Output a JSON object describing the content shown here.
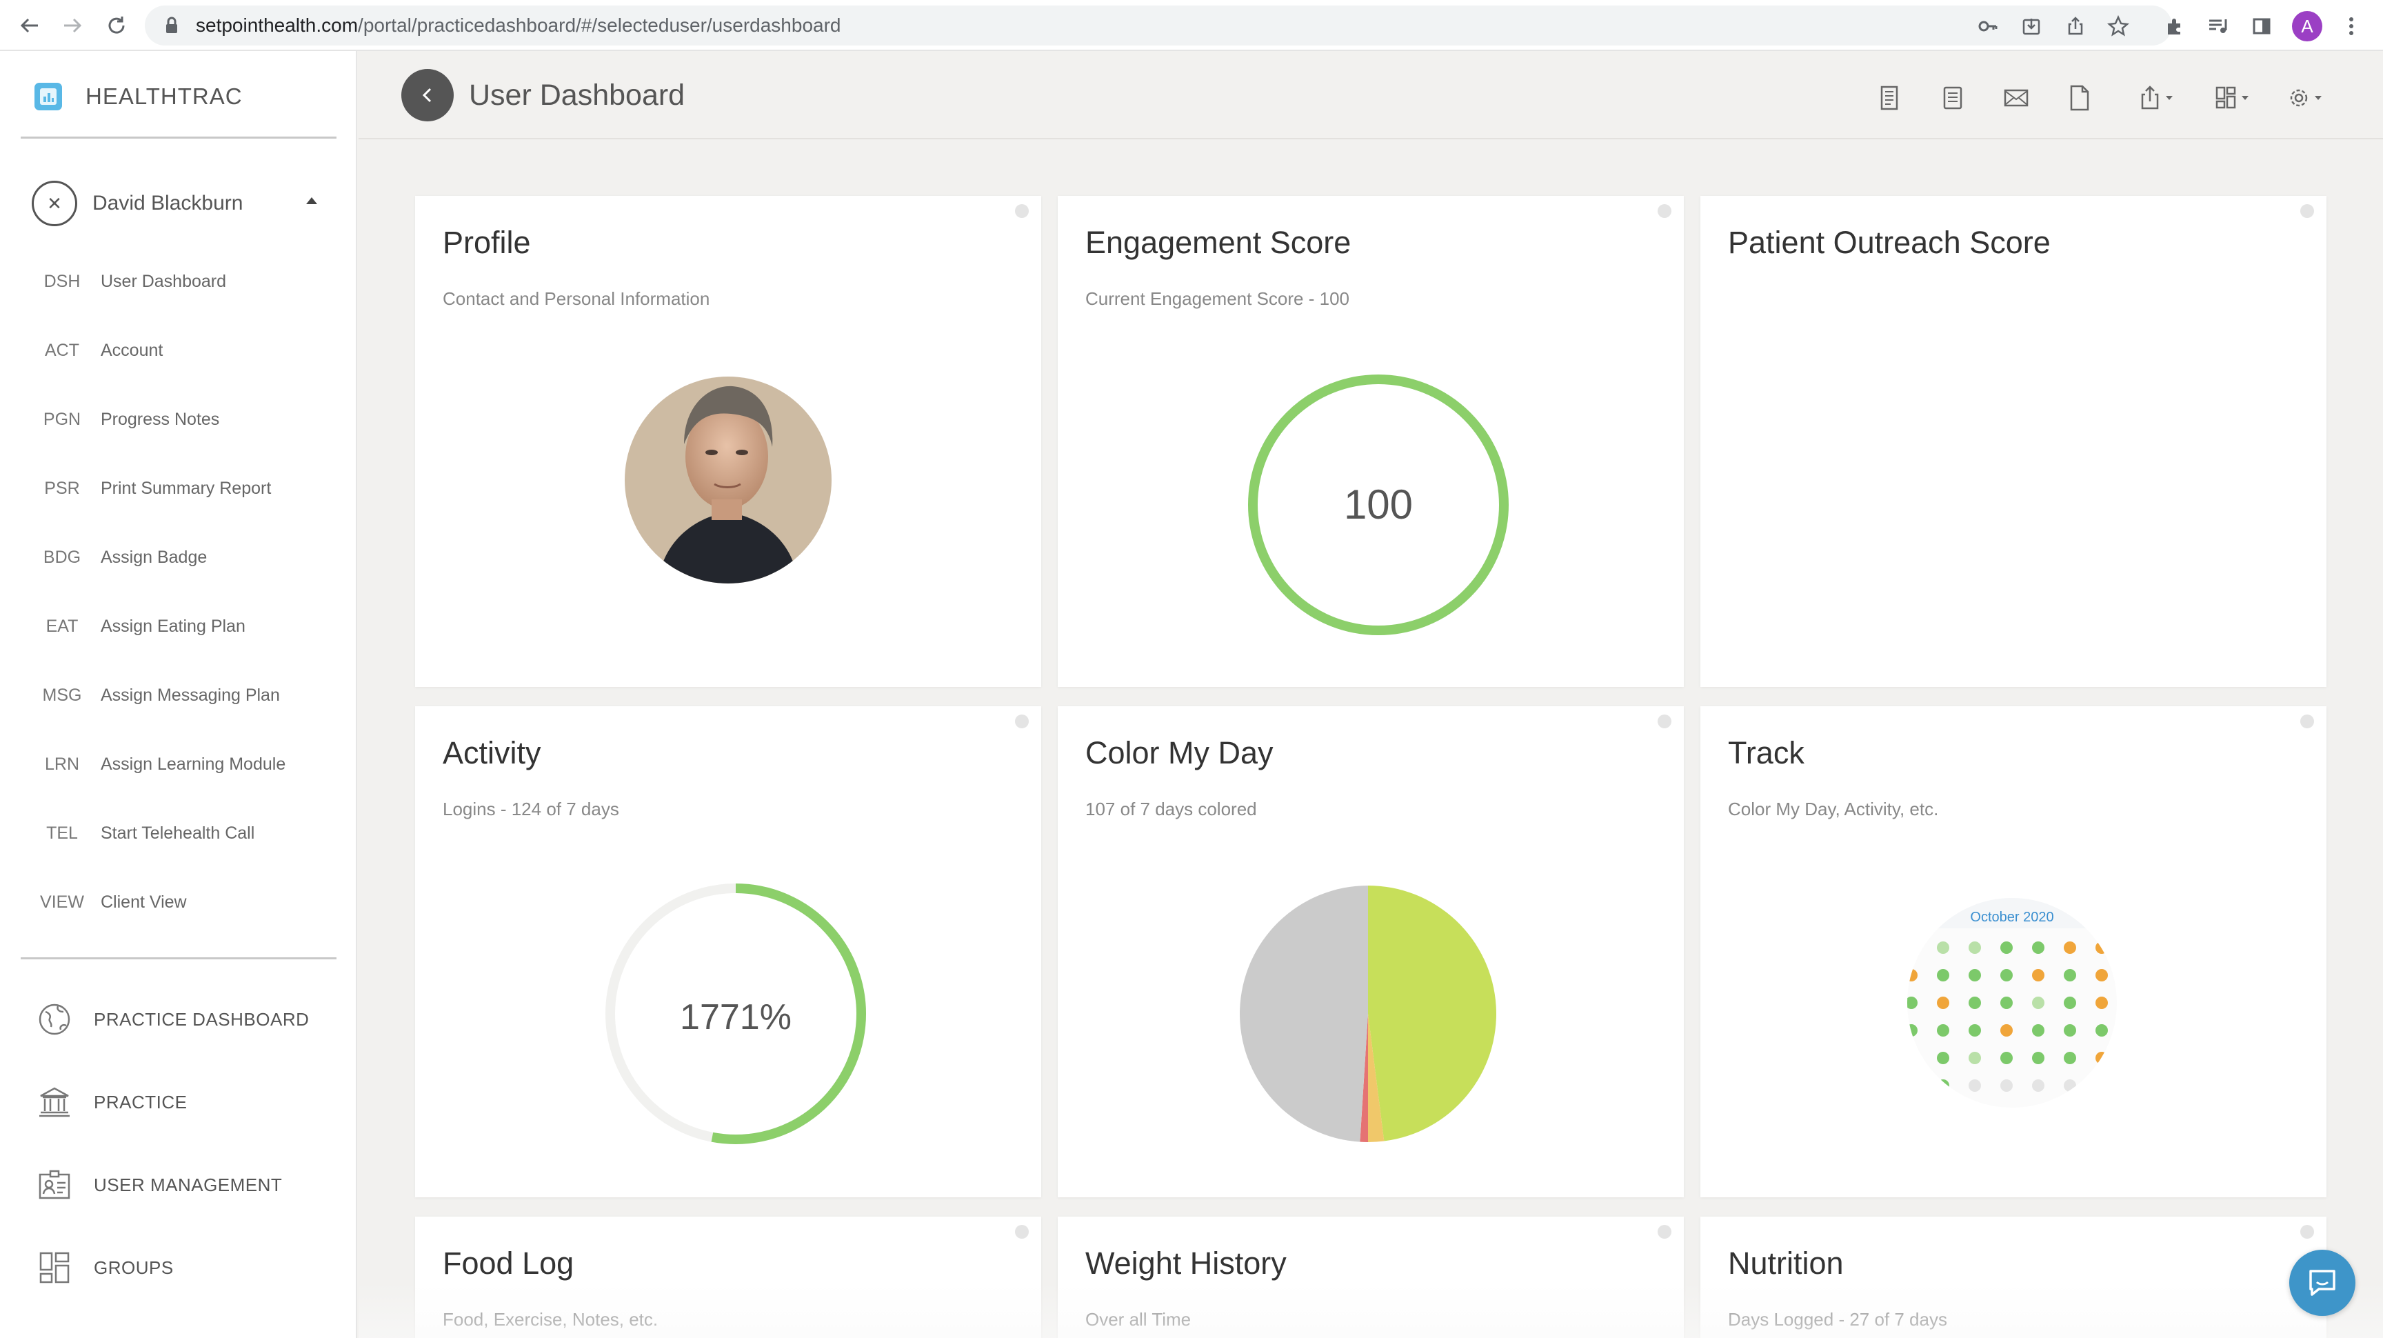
{
  "browser": {
    "url_domain": "setpointhealth.com",
    "url_path": "/portal/practicedashboard/#/selecteduser/userdashboard",
    "profile_initial": "A",
    "icons": [
      "back-arrow-icon",
      "forward-arrow-icon",
      "reload-icon",
      "lock-icon",
      "key-icon",
      "install-icon",
      "share-icon",
      "star-icon",
      "extensions-icon",
      "reading-list-icon",
      "side-panel-icon",
      "menu-icon"
    ]
  },
  "sidebar": {
    "brand_name": "HEALTHTRAC",
    "user_name": "David Blackburn",
    "menu": [
      {
        "code": "DSH",
        "label": "User Dashboard"
      },
      {
        "code": "ACT",
        "label": "Account"
      },
      {
        "code": "PGN",
        "label": "Progress Notes"
      },
      {
        "code": "PSR",
        "label": "Print Summary Report"
      },
      {
        "code": "BDG",
        "label": "Assign Badge"
      },
      {
        "code": "EAT",
        "label": "Assign Eating Plan"
      },
      {
        "code": "MSG",
        "label": "Assign Messaging Plan"
      },
      {
        "code": "LRN",
        "label": "Assign Learning Module"
      },
      {
        "code": "TEL",
        "label": "Start Telehealth Call"
      },
      {
        "code": "VIEW",
        "label": "Client View"
      }
    ],
    "nav": [
      {
        "label": "PRACTICE DASHBOARD",
        "icon": "globe-icon"
      },
      {
        "label": "PRACTICE",
        "icon": "building-icon"
      },
      {
        "label": "USER MANAGEMENT",
        "icon": "id-card-icon"
      },
      {
        "label": "GROUPS",
        "icon": "grid-icon"
      }
    ]
  },
  "header": {
    "title": "User Dashboard",
    "tools": [
      "report-icon",
      "notes-icon",
      "mail-icon",
      "document-icon",
      "export-icon",
      "layout-icon",
      "settings-icon"
    ]
  },
  "cards": {
    "profile": {
      "title": "Profile",
      "subtitle": "Contact and Personal Information"
    },
    "engagement": {
      "title": "Engagement Score",
      "subtitle": "Current Engagement Score - 100",
      "value": "100",
      "ring_color": "#8ccf6a"
    },
    "outreach": {
      "title": "Patient Outreach Score",
      "subtitle": ""
    },
    "activity": {
      "title": "Activity",
      "subtitle": "Logins - 124 of 7 days",
      "value": "1771%",
      "progress": 0.53,
      "ring_color": "#8ccf6a",
      "track_color": "#f1f1ef"
    },
    "colormyday": {
      "title": "Color My Day",
      "subtitle": "107 of 7 days colored"
    },
    "track": {
      "title": "Track",
      "subtitle": "Color My Day, Activity, etc.",
      "calendar_month": "October 2020"
    },
    "foodlog": {
      "title": "Food Log",
      "subtitle": "Food, Exercise, Notes, etc."
    },
    "weight": {
      "title": "Weight History",
      "subtitle": "Over all Time"
    },
    "nutrition": {
      "title": "Nutrition",
      "subtitle": "Days Logged - 27 of 7 days"
    }
  },
  "chart_data": {
    "type": "pie",
    "categories": [
      "Green",
      "Yellow",
      "Red",
      "Not colored"
    ],
    "values": [
      48,
      2,
      1,
      49
    ],
    "colors": [
      "#c7df5a",
      "#f0c86a",
      "#e57373",
      "#cbcbcb"
    ]
  }
}
